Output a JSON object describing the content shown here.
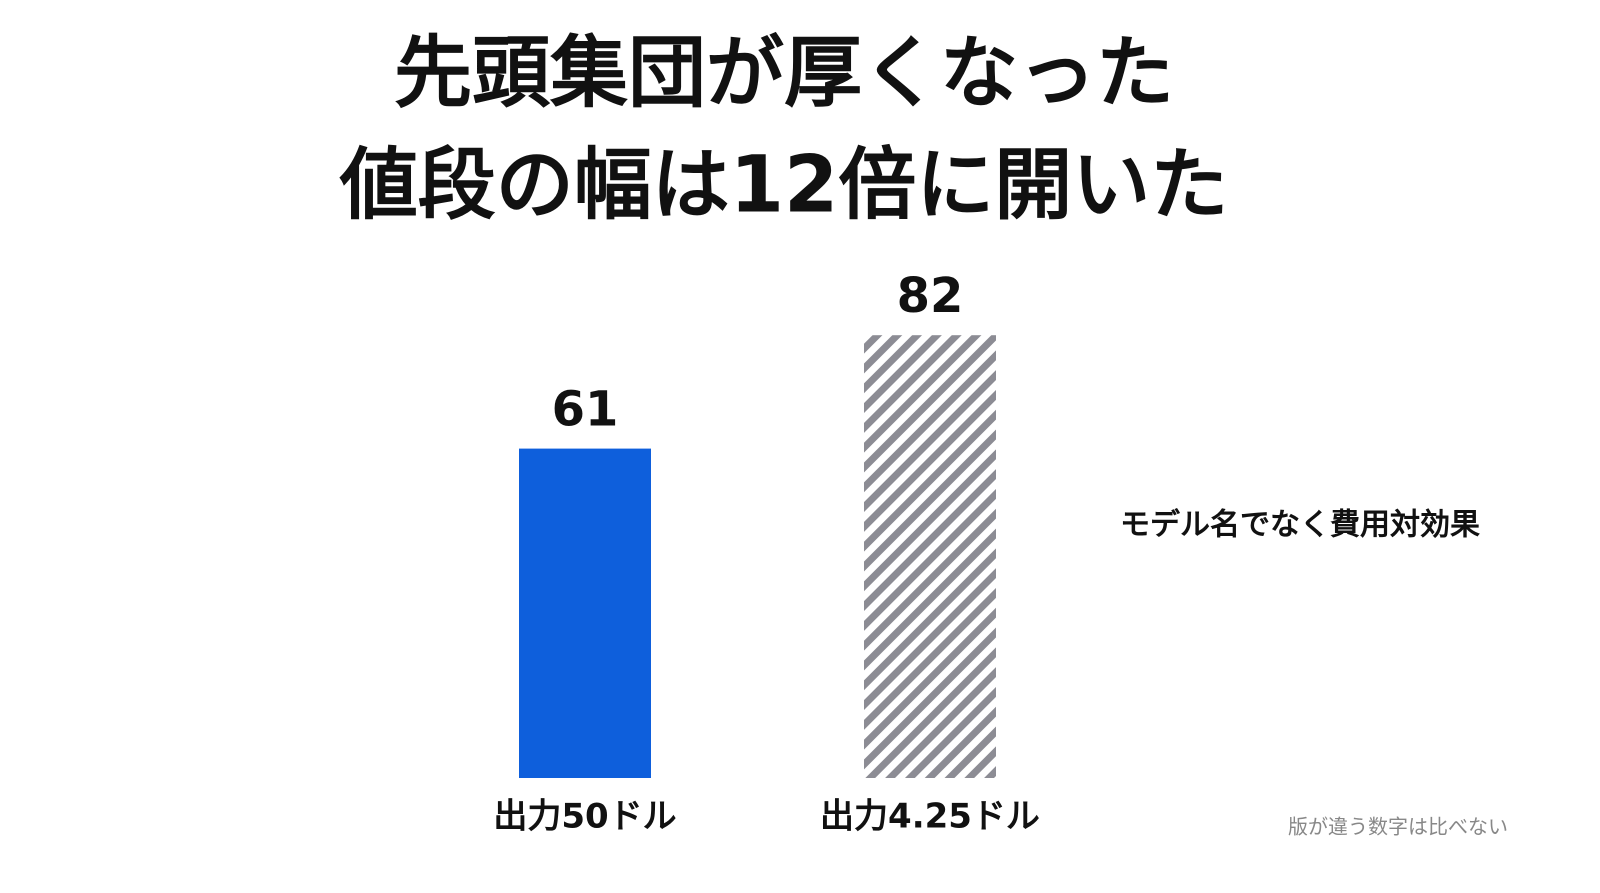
{
  "chart_data": {
    "type": "bar",
    "title": [
      "先頭集団が厚くなった",
      "値段の幅は12倍に開いた"
    ],
    "categories": [
      "出力50ドル",
      "出力4.25ドル"
    ],
    "values": [
      61,
      82
    ],
    "colors": [
      "#0e5fdc",
      "#8c8c94"
    ],
    "hatch": [
      false,
      true
    ],
    "annotations": [
      "モデル名でなく費用対効果",
      "版が違う数字は比べない"
    ]
  }
}
